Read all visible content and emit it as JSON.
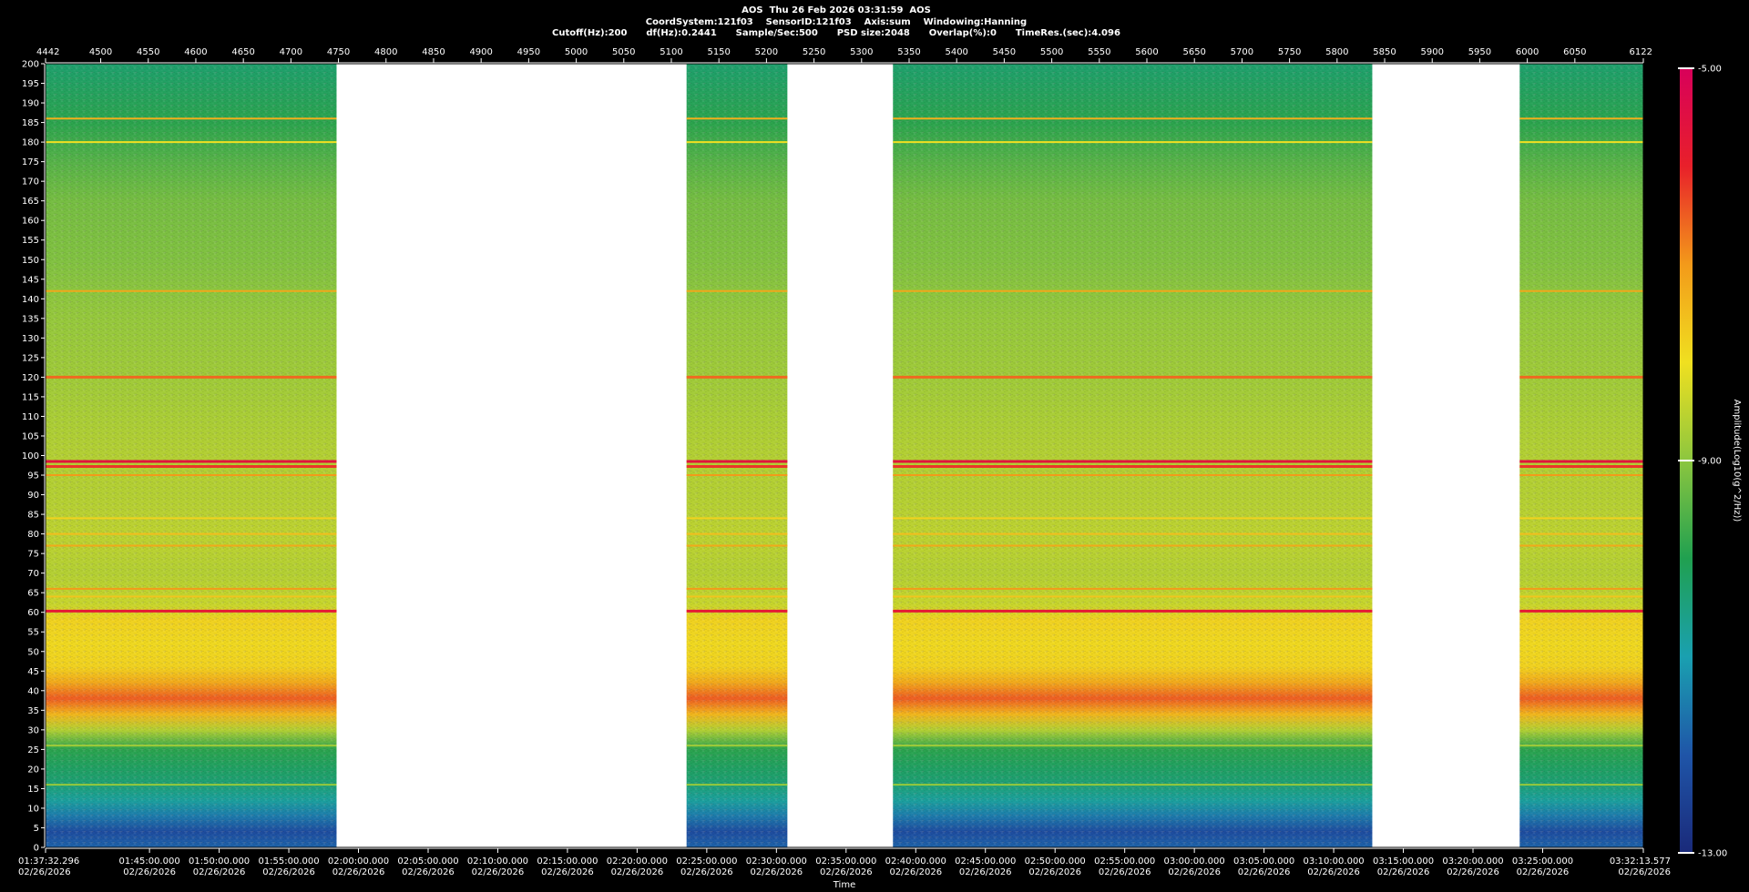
{
  "header": {
    "line1": "AOS  Thu 26 Feb 2026 03:31:59  AOS",
    "line2": "CoordSystem:121f03    SensorID:121f03    Axis:sum    Windowing:Hanning",
    "line3": "Cutoff(Hz):200      df(Hz):0.2441      Sample/Sec:500      PSD size:2048      Overlap(%):0      TimeRes.(sec):4.096"
  },
  "chart_data": {
    "type": "heatmap",
    "title": "AOS  Thu 26 Feb 2026 03:31:59  AOS",
    "xlabel": "Time",
    "ylabel": "",
    "colorbar_label": "Amplitude(Log10(g^2/Hz))",
    "colorbar_range": [
      -13.0,
      -5.0
    ],
    "colorbar_ticks": [
      "-5.00",
      "-9.00",
      "-13.00"
    ],
    "colormap": [
      "#1a2a7a",
      "#1f55a8",
      "#1aa0b0",
      "#20a050",
      "#8cc63f",
      "#f0e020",
      "#f39a1a",
      "#e8202a",
      "#d8005a"
    ],
    "ylim": [
      0,
      200
    ],
    "y_ticks": [
      0,
      5,
      10,
      15,
      20,
      25,
      30,
      35,
      40,
      45,
      50,
      55,
      60,
      65,
      70,
      75,
      80,
      85,
      90,
      95,
      100,
      105,
      110,
      115,
      120,
      125,
      130,
      135,
      140,
      145,
      150,
      155,
      160,
      165,
      170,
      175,
      180,
      185,
      190,
      195,
      200
    ],
    "top_axis_range": [
      4442,
      6122
    ],
    "top_ticks": [
      "4442",
      "4500",
      "4550",
      "4600",
      "4650",
      "4700",
      "4750",
      "4800",
      "4850",
      "4900",
      "4950",
      "5000",
      "5050",
      "5100",
      "5150",
      "5200",
      "5250",
      "5300",
      "5350",
      "5400",
      "5450",
      "5500",
      "5550",
      "5600",
      "5650",
      "5700",
      "5750",
      "5800",
      "5850",
      "5900",
      "5950",
      "6000",
      "6050",
      "6122"
    ],
    "time_ticks": [
      {
        "time": "01:37:32.296",
        "date": "02/26/2026"
      },
      {
        "time": "01:45:00.000",
        "date": "02/26/2026"
      },
      {
        "time": "01:50:00.000",
        "date": "02/26/2026"
      },
      {
        "time": "01:55:00.000",
        "date": "02/26/2026"
      },
      {
        "time": "02:00:00.000",
        "date": "02/26/2026"
      },
      {
        "time": "02:05:00.000",
        "date": "02/26/2026"
      },
      {
        "time": "02:10:00.000",
        "date": "02/26/2026"
      },
      {
        "time": "02:15:00.000",
        "date": "02/26/2026"
      },
      {
        "time": "02:20:00.000",
        "date": "02/26/2026"
      },
      {
        "time": "02:25:00.000",
        "date": "02/26/2026"
      },
      {
        "time": "02:30:00.000",
        "date": "02/26/2026"
      },
      {
        "time": "02:35:00.000",
        "date": "02/26/2026"
      },
      {
        "time": "02:40:00.000",
        "date": "02/26/2026"
      },
      {
        "time": "02:45:00.000",
        "date": "02/26/2026"
      },
      {
        "time": "02:50:00.000",
        "date": "02/26/2026"
      },
      {
        "time": "02:55:00.000",
        "date": "02/26/2026"
      },
      {
        "time": "03:00:00.000",
        "date": "02/26/2026"
      },
      {
        "time": "03:05:00.000",
        "date": "02/26/2026"
      },
      {
        "time": "03:10:00.000",
        "date": "02/26/2026"
      },
      {
        "time": "03:15:00.000",
        "date": "02/26/2026"
      },
      {
        "time": "03:20:00.000",
        "date": "02/26/2026"
      },
      {
        "time": "03:25:00.000",
        "date": "02/26/2026"
      },
      {
        "time": "03:32:13.577",
        "date": "02/26/2026"
      }
    ],
    "data_segments": [
      {
        "start": 4442,
        "end": 4748
      },
      {
        "start": 5116,
        "end": 5222
      },
      {
        "start": 5333,
        "end": 5837
      },
      {
        "start": 5992,
        "end": 6122
      }
    ],
    "frequency_profile": [
      {
        "hz": 0,
        "amp": -11.8
      },
      {
        "hz": 4,
        "amp": -12.2
      },
      {
        "hz": 8,
        "amp": -11.5
      },
      {
        "hz": 12,
        "amp": -10.8
      },
      {
        "hz": 16,
        "amp": -10.4
      },
      {
        "hz": 20,
        "amp": -10.2
      },
      {
        "hz": 25,
        "amp": -9.9
      },
      {
        "hz": 30,
        "amp": -8.6
      },
      {
        "hz": 34,
        "amp": -7.4
      },
      {
        "hz": 38,
        "amp": -6.5
      },
      {
        "hz": 42,
        "amp": -7.2
      },
      {
        "hz": 46,
        "amp": -7.8
      },
      {
        "hz": 52,
        "amp": -7.9
      },
      {
        "hz": 58,
        "amp": -7.8
      },
      {
        "hz": 62,
        "amp": -8.4
      },
      {
        "hz": 70,
        "amp": -8.6
      },
      {
        "hz": 80,
        "amp": -8.5
      },
      {
        "hz": 90,
        "amp": -8.6
      },
      {
        "hz": 100,
        "amp": -8.6
      },
      {
        "hz": 110,
        "amp": -8.7
      },
      {
        "hz": 120,
        "amp": -8.8
      },
      {
        "hz": 135,
        "amp": -8.9
      },
      {
        "hz": 150,
        "amp": -9.1
      },
      {
        "hz": 165,
        "amp": -9.2
      },
      {
        "hz": 175,
        "amp": -9.5
      },
      {
        "hz": 185,
        "amp": -9.9
      },
      {
        "hz": 200,
        "amp": -10.3
      }
    ],
    "tonal_lines": [
      {
        "hz": 186,
        "amp": -7.3
      },
      {
        "hz": 180,
        "amp": -8.0
      },
      {
        "hz": 142,
        "amp": -7.2
      },
      {
        "hz": 120,
        "amp": -6.6
      },
      {
        "hz": 98.5,
        "amp": -5.6
      },
      {
        "hz": 97.2,
        "amp": -6.2
      },
      {
        "hz": 95.0,
        "amp": -7.0
      },
      {
        "hz": 84,
        "amp": -7.8
      },
      {
        "hz": 80,
        "amp": -7.5
      },
      {
        "hz": 77,
        "amp": -7.2
      },
      {
        "hz": 66,
        "amp": -7.0
      },
      {
        "hz": 64,
        "amp": -7.6
      },
      {
        "hz": 60.3,
        "amp": -5.8
      },
      {
        "hz": 26,
        "amp": -8.8
      },
      {
        "hz": 16,
        "amp": -8.9
      }
    ]
  }
}
